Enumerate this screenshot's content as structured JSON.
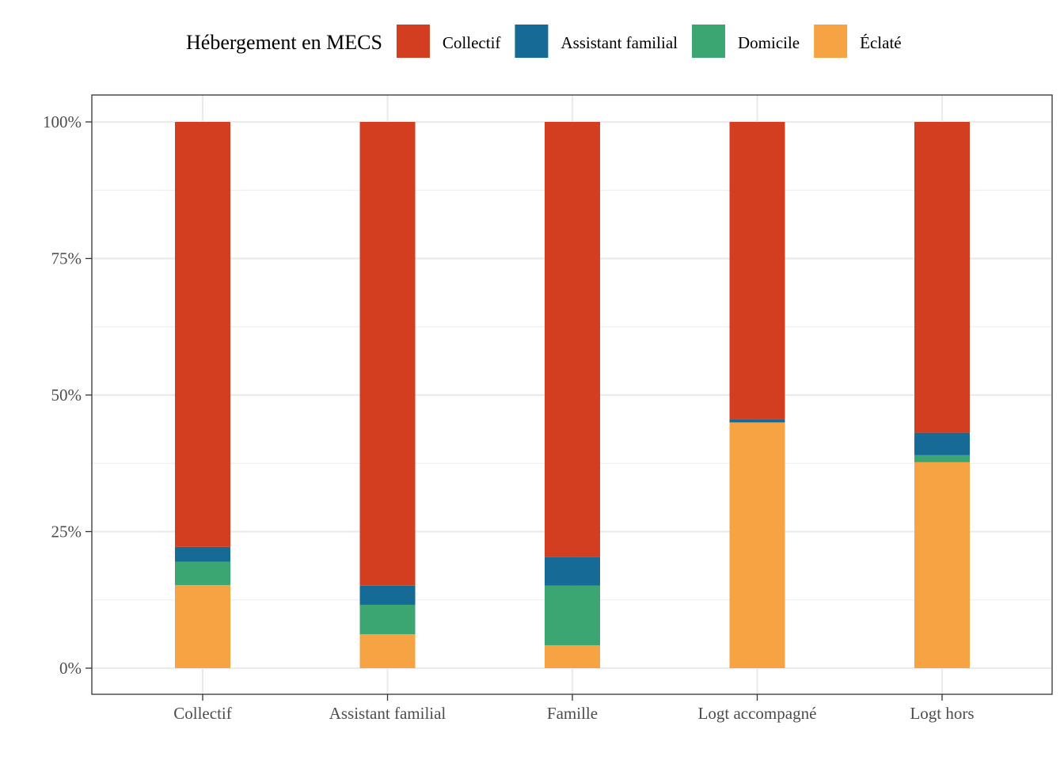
{
  "chart_data": {
    "type": "bar",
    "stacked": true,
    "percent": true,
    "categories": [
      "Collectif",
      "Assistant familial",
      "Famille",
      "Logt accompagné",
      "Logt hors"
    ],
    "legend": {
      "title": "Hébergement en MECS",
      "position": "top"
    },
    "series": [
      {
        "name": "Éclaté",
        "color": "#F6A343",
        "values": [
          15.2,
          6.2,
          4.2,
          45.0,
          37.7
        ]
      },
      {
        "name": "Domicile",
        "color": "#3BA672",
        "values": [
          4.3,
          5.4,
          10.9,
          0.0,
          1.3
        ]
      },
      {
        "name": "Assistant familial",
        "color": "#166A96",
        "values": [
          2.7,
          3.5,
          5.2,
          0.6,
          4.1
        ]
      },
      {
        "name": "Collectif",
        "color": "#D33D20",
        "values": [
          77.8,
          84.9,
          79.7,
          54.4,
          56.9
        ]
      }
    ],
    "legend_order": [
      "Collectif",
      "Assistant familial",
      "Domicile",
      "Éclaté"
    ],
    "yticks": [
      "0%",
      "25%",
      "50%",
      "75%",
      "100%"
    ],
    "ylim": [
      0,
      100
    ],
    "xlabel": "",
    "ylabel": "",
    "grid": true
  }
}
